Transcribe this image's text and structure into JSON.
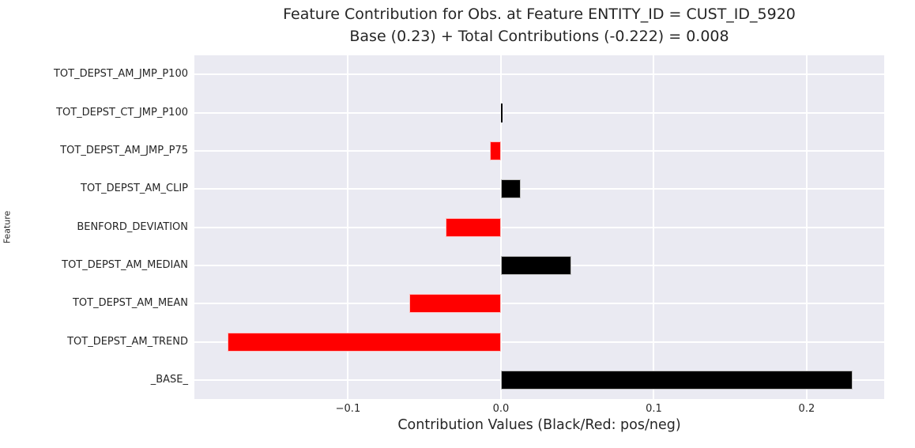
{
  "figure": {
    "title_line1": "Feature Contribution for Obs. at Feature ENTITY_ID = CUST_ID_5920",
    "title_line2": "Base (0.23) + Total Contributions (-0.222) = 0.008",
    "xlabel": "Contribution Values (Black/Red: pos/neg)",
    "ylabel": "Feature"
  },
  "chart_data": {
    "type": "bar",
    "orientation": "horizontal",
    "title": "Feature Contribution for Obs. at Feature ENTITY_ID = CUST_ID_5920\nBase (0.23) + Total Contributions (-0.222) = 0.008",
    "xlabel": "Contribution Values (Black/Red: pos/neg)",
    "ylabel": "Feature",
    "categories": [
      "TOT_DEPST_AM_JMP_P100",
      "TOT_DEPST_CT_JMP_P100",
      "TOT_DEPST_AM_JMP_P75",
      "TOT_DEPST_AM_CLIP",
      "BENFORD_DEVIATION",
      "TOT_DEPST_AM_MEDIAN",
      "TOT_DEPST_AM_MEAN",
      "TOT_DEPST_AM_TREND",
      "_BASE_"
    ],
    "values": [
      0.0,
      0.001,
      -0.007,
      0.013,
      -0.036,
      0.046,
      -0.06,
      -0.179,
      0.23
    ],
    "base_value": 0.23,
    "total_contributions": -0.222,
    "final_value": 0.008,
    "x_ticks": [
      -0.1,
      0.0,
      0.1,
      0.2
    ],
    "x_tick_labels": [
      "−0.1",
      "0.0",
      "0.1",
      "0.2"
    ],
    "xlim": [
      -0.2005,
      0.2507
    ],
    "grid": true,
    "legend": "none",
    "colors": {
      "positive_bar": "#000000",
      "negative_bar": "#ff0000",
      "plot_background": "#eaeaf2",
      "gridline": "#ffffff",
      "text": "#262626"
    }
  }
}
